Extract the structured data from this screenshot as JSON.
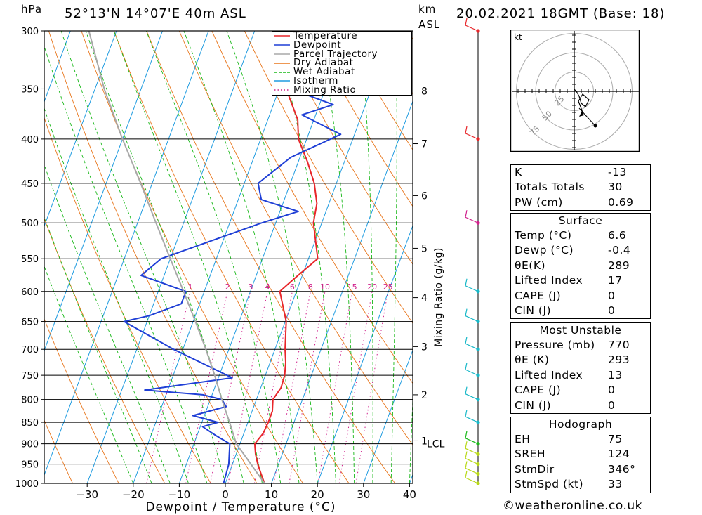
{
  "header": {
    "pressure_unit": "hPa",
    "location": "52°13'N  14°07'E  40m  ASL",
    "km_unit": "km",
    "asl": "ASL",
    "datetime": "20.02.2021  18GMT  (Base: 18)"
  },
  "chart_data": {
    "type": "skew-t log-p",
    "xlabel": "Dewpoint / Temperature (°C)",
    "x_ticks": [
      -30,
      -20,
      -10,
      0,
      10,
      20,
      30,
      40
    ],
    "xlim": [
      -40,
      40
    ],
    "ylabel": "hPa",
    "pressure_levels": [
      300,
      350,
      400,
      450,
      500,
      550,
      600,
      650,
      700,
      750,
      800,
      850,
      900,
      950,
      1000
    ],
    "ylim": [
      1000,
      300
    ],
    "km_axis": {
      "title": "km ASL",
      "ticks": [
        {
          "label": "8",
          "p": 352
        },
        {
          "label": "7",
          "p": 405
        },
        {
          "label": "6",
          "p": 465
        },
        {
          "label": "5",
          "p": 535
        },
        {
          "label": "4",
          "p": 610
        },
        {
          "label": "3",
          "p": 695
        },
        {
          "label": "2",
          "p": 790
        },
        {
          "label": "1",
          "p": 893
        }
      ],
      "lcl_label": "LCL",
      "lcl_p": 898
    },
    "mixing_ratio_axis_label": "Mixing Ratio (g/kg)",
    "mixing_ratio_labels": [
      "1",
      "2",
      "3",
      "4",
      "6",
      "8",
      "10",
      "15",
      "20",
      "25"
    ],
    "mixing_ratio_values": [
      1,
      2,
      3,
      4,
      6,
      8,
      10,
      15,
      20,
      25
    ],
    "legend": [
      {
        "name": "Temperature",
        "color": "#e8262a",
        "style": "solid"
      },
      {
        "name": "Dewpoint",
        "color": "#1f3fd6",
        "style": "solid"
      },
      {
        "name": "Parcel Trajectory",
        "color": "#a8a8a8",
        "style": "solid"
      },
      {
        "name": "Dry Adiabat",
        "color": "#e8761c",
        "style": "solid"
      },
      {
        "name": "Wet Adiabat",
        "color": "#18b818",
        "style": "dashed"
      },
      {
        "name": "Isotherm",
        "color": "#1e9be0",
        "style": "solid"
      },
      {
        "name": "Mixing Ratio",
        "color": "#d0208c",
        "style": "dotted"
      }
    ],
    "series": [
      {
        "name": "Temperature",
        "color": "#e8262a",
        "points": [
          [
            1000,
            8.5
          ],
          [
            975,
            7
          ],
          [
            950,
            5.5
          ],
          [
            925,
            4.2
          ],
          [
            900,
            3.2
          ],
          [
            875,
            4.2
          ],
          [
            850,
            4.4
          ],
          [
            825,
            4.4
          ],
          [
            800,
            3.6
          ],
          [
            775,
            4.4
          ],
          [
            750,
            4.2
          ],
          [
            725,
            3.4
          ],
          [
            700,
            2.2
          ],
          [
            650,
            0.2
          ],
          [
            600,
            -3.6
          ],
          [
            580,
            -1.5
          ],
          [
            550,
            2.0
          ],
          [
            500,
            -1.8
          ],
          [
            475,
            -2.6
          ],
          [
            450,
            -4.8
          ],
          [
            425,
            -8
          ],
          [
            400,
            -11.8
          ],
          [
            380,
            -13.5
          ],
          [
            350,
            -18.5
          ],
          [
            300,
            -25
          ]
        ]
      },
      {
        "name": "Dewpoint",
        "color": "#1f3fd6",
        "points": [
          [
            1000,
            -0.4
          ],
          [
            950,
            -0.8
          ],
          [
            925,
            -1.5
          ],
          [
            900,
            -2.2
          ],
          [
            880,
            -6
          ],
          [
            860,
            -9.5
          ],
          [
            850,
            -6.5
          ],
          [
            835,
            -12.5
          ],
          [
            815,
            -6
          ],
          [
            800,
            -7.5
          ],
          [
            790,
            -12
          ],
          [
            780,
            -25
          ],
          [
            755,
            -7
          ],
          [
            700,
            -22
          ],
          [
            650,
            -35
          ],
          [
            640,
            -30
          ],
          [
            620,
            -24
          ],
          [
            600,
            -24
          ],
          [
            575,
            -35
          ],
          [
            550,
            -32
          ],
          [
            500,
            -13
          ],
          [
            485,
            -6
          ],
          [
            470,
            -15
          ],
          [
            450,
            -17
          ],
          [
            420,
            -12
          ],
          [
            395,
            -3
          ],
          [
            385,
            -8
          ],
          [
            375,
            -13
          ],
          [
            365,
            -7
          ],
          [
            355,
            -14
          ],
          [
            345,
            -18
          ],
          [
            330,
            -13
          ],
          [
            320,
            -7
          ],
          [
            310,
            -2
          ],
          [
            300,
            -1
          ]
        ]
      },
      {
        "name": "Parcel Trajectory",
        "color": "#a8a8a8",
        "points": [
          [
            1000,
            8.5
          ],
          [
            950,
            4
          ],
          [
            900,
            -0.8
          ],
          [
            850,
            -4
          ],
          [
            800,
            -7.5
          ],
          [
            750,
            -11
          ],
          [
            700,
            -15
          ],
          [
            650,
            -19.5
          ],
          [
            600,
            -24.5
          ],
          [
            550,
            -30
          ],
          [
            500,
            -36
          ],
          [
            450,
            -42.5
          ],
          [
            400,
            -50
          ],
          [
            350,
            -58
          ],
          [
            300,
            -66
          ]
        ]
      }
    ]
  },
  "wind_profile": {
    "levels_hpa": [
      1000,
      975,
      950,
      925,
      900,
      850,
      800,
      750,
      700,
      650,
      600,
      500,
      400,
      300
    ]
  },
  "hodograph": {
    "unit": "kt",
    "ring_labels": [
      "25",
      "50",
      "75"
    ]
  },
  "indices": [
    {
      "label": "K",
      "value": "-13"
    },
    {
      "label": "Totals Totals",
      "value": "30"
    },
    {
      "label": "PW (cm)",
      "value": "0.69"
    }
  ],
  "surface": {
    "title": "Surface",
    "rows": [
      {
        "label": "Temp (°C)",
        "value": "6.6"
      },
      {
        "label": "Dewp (°C)",
        "value": "-0.4"
      },
      {
        "label": "θE(K)",
        "value": "289"
      },
      {
        "label": "Lifted Index",
        "value": "17"
      },
      {
        "label": "CAPE (J)",
        "value": "0"
      },
      {
        "label": "CIN (J)",
        "value": "0"
      }
    ]
  },
  "most_unstable": {
    "title": "Most Unstable",
    "rows": [
      {
        "label": "Pressure (mb)",
        "value": "770"
      },
      {
        "label": "θE (K)",
        "value": "293"
      },
      {
        "label": "Lifted Index",
        "value": "13"
      },
      {
        "label": "CAPE (J)",
        "value": "0"
      },
      {
        "label": "CIN (J)",
        "value": "0"
      }
    ]
  },
  "hodograph_stats": {
    "title": "Hodograph",
    "rows": [
      {
        "label": "EH",
        "value": "75"
      },
      {
        "label": "SREH",
        "value": "124"
      },
      {
        "label": "StmDir",
        "value": "346°"
      },
      {
        "label": "StmSpd (kt)",
        "value": "33"
      }
    ]
  },
  "credit": "©weatheronline.co.uk",
  "colors": {
    "temperature": "#e8262a",
    "dewpoint": "#1f3fd6",
    "parcel": "#a8a8a8",
    "dry_adiabat": "#e8761c",
    "wet_adiabat": "#18b818",
    "isotherm": "#1e9be0",
    "mixing_ratio": "#d0208c",
    "wind_axis_dot_red": "#e8262a"
  }
}
